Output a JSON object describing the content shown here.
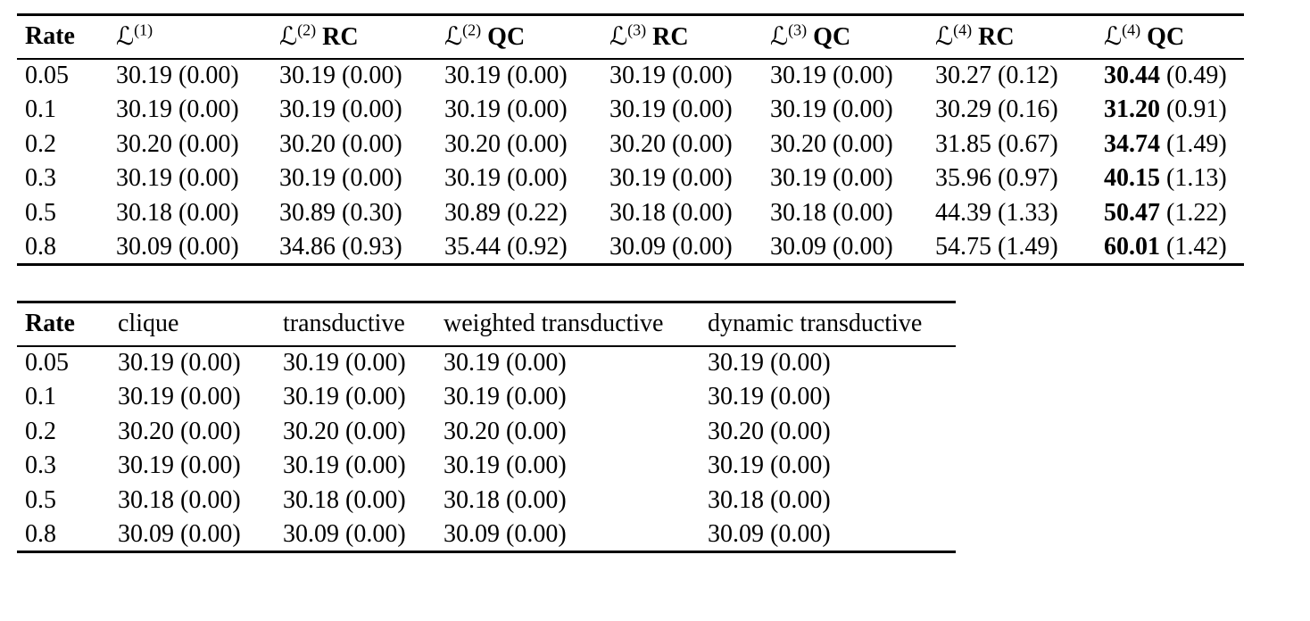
{
  "page": {
    "background": "#ffffff",
    "text_color": "#000000"
  },
  "table1": {
    "headers": [
      {
        "type": "plain",
        "text": "Rate",
        "bold": true
      },
      {
        "type": "math",
        "symbol": "ℒ",
        "sup": "(1)",
        "suffix": ""
      },
      {
        "type": "math",
        "symbol": "ℒ",
        "sup": "(2)",
        "suffix": "RC"
      },
      {
        "type": "math",
        "symbol": "ℒ",
        "sup": "(2)",
        "suffix": "QC"
      },
      {
        "type": "math",
        "symbol": "ℒ",
        "sup": "(3)",
        "suffix": "RC"
      },
      {
        "type": "math",
        "symbol": "ℒ",
        "sup": "(3)",
        "suffix": "QC"
      },
      {
        "type": "math",
        "symbol": "ℒ",
        "sup": "(4)",
        "suffix": "RC"
      },
      {
        "type": "math",
        "symbol": "ℒ",
        "sup": "(4)",
        "suffix": "QC"
      }
    ],
    "bold_value_columns": [
      6
    ],
    "rows": [
      {
        "rate": "0.05",
        "cells": [
          {
            "mean": "30.19",
            "sd": "(0.00)"
          },
          {
            "mean": "30.19",
            "sd": "(0.00)"
          },
          {
            "mean": "30.19",
            "sd": "(0.00)"
          },
          {
            "mean": "30.19",
            "sd": "(0.00)"
          },
          {
            "mean": "30.19",
            "sd": "(0.00)"
          },
          {
            "mean": "30.27",
            "sd": "(0.12)"
          },
          {
            "mean": "30.44",
            "sd": "(0.49)"
          }
        ]
      },
      {
        "rate": "0.1",
        "cells": [
          {
            "mean": "30.19",
            "sd": "(0.00)"
          },
          {
            "mean": "30.19",
            "sd": "(0.00)"
          },
          {
            "mean": "30.19",
            "sd": "(0.00)"
          },
          {
            "mean": "30.19",
            "sd": "(0.00)"
          },
          {
            "mean": "30.19",
            "sd": "(0.00)"
          },
          {
            "mean": "30.29",
            "sd": "(0.16)"
          },
          {
            "mean": "31.20",
            "sd": "(0.91)"
          }
        ]
      },
      {
        "rate": "0.2",
        "cells": [
          {
            "mean": "30.20",
            "sd": "(0.00)"
          },
          {
            "mean": "30.20",
            "sd": "(0.00)"
          },
          {
            "mean": "30.20",
            "sd": "(0.00)"
          },
          {
            "mean": "30.20",
            "sd": "(0.00)"
          },
          {
            "mean": "30.20",
            "sd": "(0.00)"
          },
          {
            "mean": "31.85",
            "sd": "(0.67)"
          },
          {
            "mean": "34.74",
            "sd": "(1.49)"
          }
        ]
      },
      {
        "rate": "0.3",
        "cells": [
          {
            "mean": "30.19",
            "sd": "(0.00)"
          },
          {
            "mean": "30.19",
            "sd": "(0.00)"
          },
          {
            "mean": "30.19",
            "sd": "(0.00)"
          },
          {
            "mean": "30.19",
            "sd": "(0.00)"
          },
          {
            "mean": "30.19",
            "sd": "(0.00)"
          },
          {
            "mean": "35.96",
            "sd": "(0.97)"
          },
          {
            "mean": "40.15",
            "sd": "(1.13)"
          }
        ]
      },
      {
        "rate": "0.5",
        "cells": [
          {
            "mean": "30.18",
            "sd": "(0.00)"
          },
          {
            "mean": "30.89",
            "sd": "(0.30)"
          },
          {
            "mean": "30.89",
            "sd": "(0.22)"
          },
          {
            "mean": "30.18",
            "sd": "(0.00)"
          },
          {
            "mean": "30.18",
            "sd": "(0.00)"
          },
          {
            "mean": "44.39",
            "sd": "(1.33)"
          },
          {
            "mean": "50.47",
            "sd": "(1.22)"
          }
        ]
      },
      {
        "rate": "0.8",
        "cells": [
          {
            "mean": "30.09",
            "sd": "(0.00)"
          },
          {
            "mean": "34.86",
            "sd": "(0.93)"
          },
          {
            "mean": "35.44",
            "sd": "(0.92)"
          },
          {
            "mean": "30.09",
            "sd": "(0.00)"
          },
          {
            "mean": "30.09",
            "sd": "(0.00)"
          },
          {
            "mean": "54.75",
            "sd": "(1.49)"
          },
          {
            "mean": "60.01",
            "sd": "(1.42)"
          }
        ]
      }
    ]
  },
  "table2": {
    "headers": [
      {
        "type": "plain",
        "text": "Rate",
        "bold": true
      },
      {
        "type": "plain",
        "text": "clique"
      },
      {
        "type": "plain",
        "text": "transductive"
      },
      {
        "type": "plain",
        "text": "weighted transductive"
      },
      {
        "type": "plain",
        "text": "dynamic transductive"
      }
    ],
    "bold_value_columns": [],
    "rows": [
      {
        "rate": "0.05",
        "cells": [
          {
            "mean": "30.19",
            "sd": "(0.00)"
          },
          {
            "mean": "30.19",
            "sd": "(0.00)"
          },
          {
            "mean": "30.19",
            "sd": "(0.00)"
          },
          {
            "mean": "30.19",
            "sd": "(0.00)"
          }
        ]
      },
      {
        "rate": "0.1",
        "cells": [
          {
            "mean": "30.19",
            "sd": "(0.00)"
          },
          {
            "mean": "30.19",
            "sd": "(0.00)"
          },
          {
            "mean": "30.19",
            "sd": "(0.00)"
          },
          {
            "mean": "30.19",
            "sd": "(0.00)"
          }
        ]
      },
      {
        "rate": "0.2",
        "cells": [
          {
            "mean": "30.20",
            "sd": "(0.00)"
          },
          {
            "mean": "30.20",
            "sd": "(0.00)"
          },
          {
            "mean": "30.20",
            "sd": "(0.00)"
          },
          {
            "mean": "30.20",
            "sd": "(0.00)"
          }
        ]
      },
      {
        "rate": "0.3",
        "cells": [
          {
            "mean": "30.19",
            "sd": "(0.00)"
          },
          {
            "mean": "30.19",
            "sd": "(0.00)"
          },
          {
            "mean": "30.19",
            "sd": "(0.00)"
          },
          {
            "mean": "30.19",
            "sd": "(0.00)"
          }
        ]
      },
      {
        "rate": "0.5",
        "cells": [
          {
            "mean": "30.18",
            "sd": "(0.00)"
          },
          {
            "mean": "30.18",
            "sd": "(0.00)"
          },
          {
            "mean": "30.18",
            "sd": "(0.00)"
          },
          {
            "mean": "30.18",
            "sd": "(0.00)"
          }
        ]
      },
      {
        "rate": "0.8",
        "cells": [
          {
            "mean": "30.09",
            "sd": "(0.00)"
          },
          {
            "mean": "30.09",
            "sd": "(0.00)"
          },
          {
            "mean": "30.09",
            "sd": "(0.00)"
          },
          {
            "mean": "30.09",
            "sd": "(0.00)"
          }
        ]
      }
    ]
  }
}
